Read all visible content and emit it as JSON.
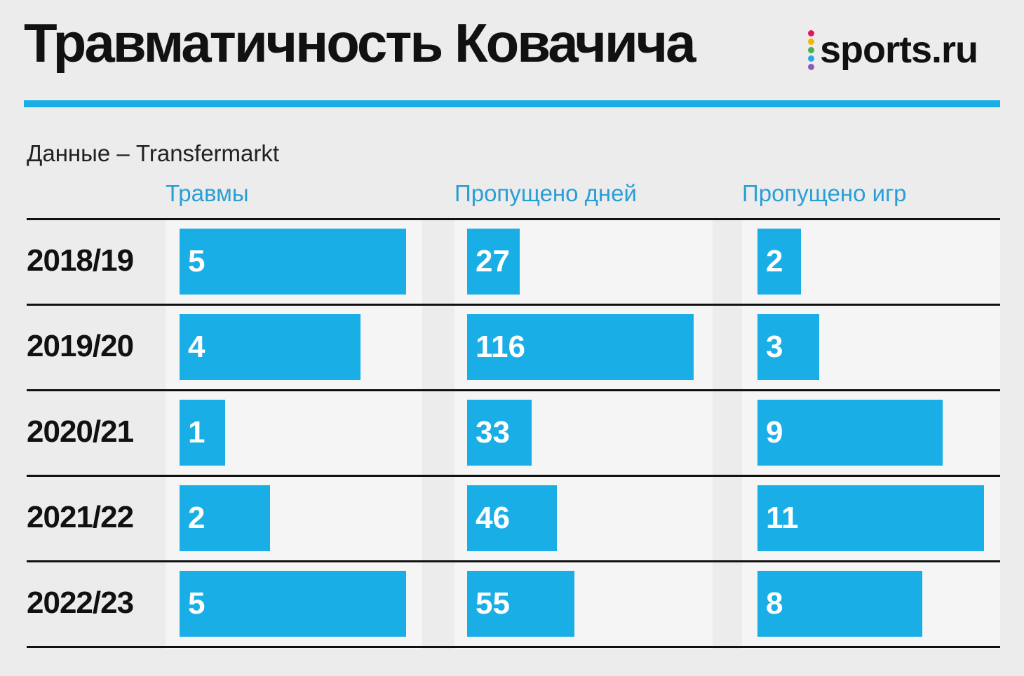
{
  "header": {
    "title": "Травматичность Ковачича",
    "logo_text": "sports.ru",
    "logo_dot_colors": [
      "#e8175d",
      "#f7b500",
      "#4caf50",
      "#29a8e0",
      "#8e5bb5"
    ]
  },
  "source": "Данные – Transfermarkt",
  "colors": {
    "bar": "#1aaee6",
    "rule": "#1aaee6",
    "column_header": "#2a9fd6"
  },
  "chart_data": {
    "type": "bar",
    "orientation": "horizontal",
    "layout": "table",
    "title": "Травматичность Ковачича",
    "categories": [
      "2018/19",
      "2019/20",
      "2020/21",
      "2021/22",
      "2022/23"
    ],
    "series": [
      {
        "name": "Травмы",
        "values": [
          5,
          4,
          1,
          2,
          5
        ]
      },
      {
        "name": "Пропущено дней",
        "values": [
          27,
          116,
          33,
          46,
          55
        ]
      },
      {
        "name": "Пропущено игр",
        "values": [
          2,
          3,
          9,
          11,
          8
        ]
      }
    ]
  }
}
